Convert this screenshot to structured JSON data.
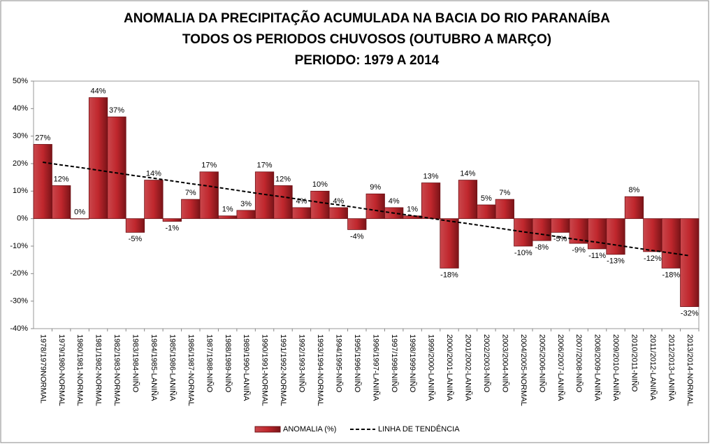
{
  "chart_data": {
    "type": "bar",
    "title": [
      "ANOMALIA DA PRECIPITAÇÃO ACUMULADA  NA BACIA DO RIO PARANAÍBA",
      "TODOS OS PERIODOS CHUVOSOS (OUTUBRO A MARÇO)",
      "PERIODO: 1979 A 2014"
    ],
    "categories": [
      "1978/1979NORMAL",
      "1979/1980-NORMAL",
      "1980/1981-NORMAL",
      "1981/1982-NORMAL",
      "1982/1983-NORMAL",
      "1983/1984-NIÑO",
      "1984/1985-LANIÑA",
      "1985/1986-LANIÑA",
      "1986/1987-NORMAL",
      "1987/1988-NIÑO",
      "1988/1989-NIÑO",
      "1989/1990-LANIÑA",
      "1990/1991-NORMAL",
      "1991/1992-NORMAL",
      "1992/1993-NIÑO",
      "1993/1994-NORMAL",
      "1994/1995-NIÑO",
      "1995/1996-NIÑO",
      "1996/1997-LANIÑA",
      "1997/1998-NIÑO",
      "1998/1999-NIÑO",
      "1999/2000-LANIÑA",
      "2000/2001-LANIÑA",
      "2001/2002-LANIÑA",
      "2002/2003-NIÑO",
      "2003/2004-NIÑO",
      "2004/2005-NORMAL",
      "2005/2006-NIÑO",
      "2006/2007-LANIÑA",
      "2007/2008-NIÑO",
      "2008/2009-LANIÑA",
      "2009/2010-LANIÑA",
      "2010/2011-NIÑO",
      "2011/2012-LANIÑA",
      "2012/2013-LANIÑA",
      "2013/2014-NORMAL"
    ],
    "series": [
      {
        "name": "ANOMALIA (%)",
        "type": "bar",
        "color": "#c0272d",
        "values": [
          27,
          12,
          0,
          44,
          37,
          -5,
          14,
          -1,
          7,
          17,
          1,
          3,
          17,
          12,
          4,
          10,
          4,
          -4,
          9,
          4,
          1,
          13,
          -18,
          14,
          5,
          7,
          -10,
          -8,
          -5,
          -9,
          -11,
          -13,
          8,
          -12,
          -18,
          -32
        ],
        "value_labels": [
          "27%",
          "12%",
          "0%",
          "44%",
          "37%",
          "-5%",
          "14%",
          "-1%",
          "7%",
          "17%",
          "1%",
          "3%",
          "17%",
          "12%",
          "4%",
          "10%",
          "4%",
          "-4%",
          "9%",
          "4%",
          "1%",
          "13%",
          "-18%",
          "14%",
          "5%",
          "7%",
          "-10%",
          "-8%",
          "-5%",
          "-9%",
          "-11%",
          "-13%",
          "8%",
          "-12%",
          "-18%",
          "-32%"
        ]
      },
      {
        "name": "LINHA DE TENDÊNCIA",
        "type": "line",
        "dashed": true,
        "color": "#000000",
        "values": [
          20.5,
          19.5,
          18.6,
          17.6,
          16.6,
          15.6,
          14.7,
          13.7,
          12.7,
          11.8,
          10.8,
          9.8,
          8.8,
          7.9,
          6.9,
          5.9,
          5.0,
          4.0,
          3.0,
          2.0,
          1.1,
          0.1,
          -0.9,
          -1.8,
          -2.8,
          -3.8,
          -4.8,
          -5.7,
          -6.7,
          -7.7,
          -8.6,
          -9.6,
          -10.6,
          -11.6,
          -12.5,
          -13.5
        ]
      }
    ],
    "ylim": [
      -40,
      50
    ],
    "yticks": [
      {
        "value": -40,
        "label": "-40%"
      },
      {
        "value": -30,
        "label": "-30%"
      },
      {
        "value": -20,
        "label": "-20%"
      },
      {
        "value": -10,
        "label": "-10%"
      },
      {
        "value": 0,
        "label": "0%"
      },
      {
        "value": 10,
        "label": "10%"
      },
      {
        "value": 20,
        "label": "20%"
      },
      {
        "value": 30,
        "label": "30%"
      },
      {
        "value": 40,
        "label": "40%"
      },
      {
        "value": 50,
        "label": "50%"
      }
    ],
    "grid": false,
    "legend": "bottom"
  }
}
